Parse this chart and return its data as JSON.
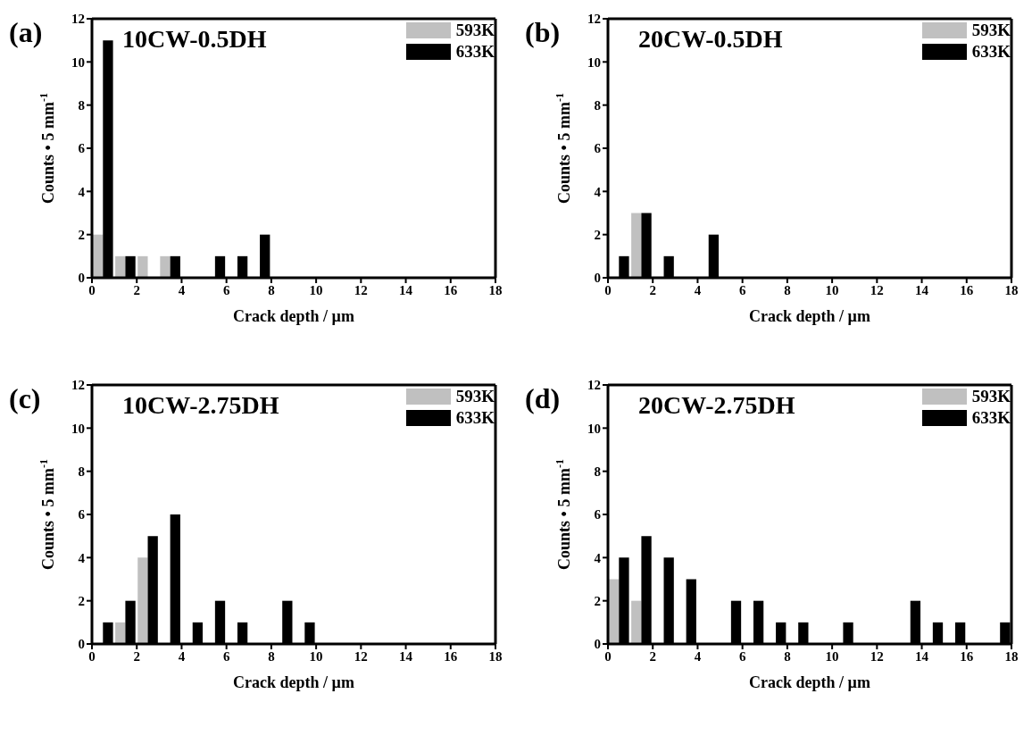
{
  "chart_data": [
    {
      "type": "histogram",
      "title": "10CW-0.5DH",
      "annotations": [
        "(a)"
      ],
      "xlabel": "Crack depth / µm",
      "ylabel": "Counts • 5 mm$^{-1}$",
      "bins": [
        0,
        1,
        2,
        3,
        4,
        5,
        6,
        7,
        8,
        9,
        10,
        11,
        12,
        13,
        14,
        15,
        16,
        17,
        18
      ],
      "xlim": [
        0,
        18
      ],
      "xticks": [
        0,
        2,
        4,
        6,
        8,
        10,
        12,
        14,
        16,
        18
      ],
      "ylim": [
        0,
        12
      ],
      "yticks": [
        0,
        2,
        4,
        6,
        8,
        10,
        12
      ],
      "legend": "top right",
      "series": [
        {
          "name": "593K",
          "color": "#c0c0c0",
          "values": [
            2,
            1,
            1,
            1,
            0,
            0,
            0,
            0,
            0,
            0,
            0,
            0,
            0,
            0,
            0,
            0,
            0,
            0
          ]
        },
        {
          "name": "633K",
          "color": "#000000",
          "values": [
            11,
            1,
            0,
            1,
            0,
            1,
            1,
            2,
            0,
            0,
            0,
            0,
            0,
            0,
            0,
            0,
            0,
            0
          ]
        }
      ]
    },
    {
      "type": "histogram",
      "title": "20CW-0.5DH",
      "annotations": [
        "(b)"
      ],
      "xlabel": "Crack depth / µm",
      "ylabel": "Counts • 5 mm$^{-1}$",
      "bins": [
        0,
        1,
        2,
        3,
        4,
        5,
        6,
        7,
        8,
        9,
        10,
        11,
        12,
        13,
        14,
        15,
        16,
        17,
        18
      ],
      "xlim": [
        0,
        18
      ],
      "xticks": [
        0,
        2,
        4,
        6,
        8,
        10,
        12,
        14,
        16,
        18
      ],
      "ylim": [
        0,
        12
      ],
      "yticks": [
        0,
        2,
        4,
        6,
        8,
        10,
        12
      ],
      "legend": "top right",
      "series": [
        {
          "name": "593K",
          "color": "#c0c0c0",
          "values": [
            0,
            3,
            0,
            0,
            0,
            0,
            0,
            0,
            0,
            0,
            0,
            0,
            0,
            0,
            0,
            0,
            0,
            0
          ]
        },
        {
          "name": "633K",
          "color": "#000000",
          "values": [
            1,
            3,
            1,
            0,
            2,
            0,
            0,
            0,
            0,
            0,
            0,
            0,
            0,
            0,
            0,
            0,
            0,
            0
          ]
        }
      ]
    },
    {
      "type": "histogram",
      "title": "10CW-2.75DH",
      "annotations": [
        "(c)"
      ],
      "xlabel": "Crack depth / µm",
      "ylabel": "Counts • 5 mm$^{-1}$",
      "bins": [
        0,
        1,
        2,
        3,
        4,
        5,
        6,
        7,
        8,
        9,
        10,
        11,
        12,
        13,
        14,
        15,
        16,
        17,
        18
      ],
      "xlim": [
        0,
        18
      ],
      "xticks": [
        0,
        2,
        4,
        6,
        8,
        10,
        12,
        14,
        16,
        18
      ],
      "ylim": [
        0,
        12
      ],
      "yticks": [
        0,
        2,
        4,
        6,
        8,
        10,
        12
      ],
      "legend": "top right",
      "series": [
        {
          "name": "593K",
          "color": "#c0c0c0",
          "values": [
            0,
            1,
            4,
            0,
            0,
            0,
            0,
            0,
            0,
            0,
            0,
            0,
            0,
            0,
            0,
            0,
            0,
            0
          ]
        },
        {
          "name": "633K",
          "color": "#000000",
          "values": [
            1,
            2,
            5,
            6,
            1,
            2,
            1,
            0,
            2,
            1,
            0,
            0,
            0,
            0,
            0,
            0,
            0,
            0
          ]
        }
      ]
    },
    {
      "type": "histogram",
      "title": "20CW-2.75DH",
      "annotations": [
        "(d)"
      ],
      "xlabel": "Crack depth / µm",
      "ylabel": "Counts • 5 mm$^{-1}$",
      "bins": [
        0,
        1,
        2,
        3,
        4,
        5,
        6,
        7,
        8,
        9,
        10,
        11,
        12,
        13,
        14,
        15,
        16,
        17,
        18
      ],
      "xlim": [
        0,
        18
      ],
      "xticks": [
        0,
        2,
        4,
        6,
        8,
        10,
        12,
        14,
        16,
        18
      ],
      "ylim": [
        0,
        12
      ],
      "yticks": [
        0,
        2,
        4,
        6,
        8,
        10,
        12
      ],
      "legend": "top right",
      "series": [
        {
          "name": "593K",
          "color": "#c0c0c0",
          "values": [
            3,
            2,
            0,
            0,
            0,
            0,
            0,
            0,
            0,
            0,
            0,
            0,
            0,
            0,
            0,
            0,
            0,
            0
          ]
        },
        {
          "name": "633K",
          "color": "#000000",
          "values": [
            4,
            5,
            4,
            3,
            0,
            2,
            2,
            1,
            1,
            0,
            1,
            0,
            0,
            2,
            1,
            1,
            0,
            1
          ]
        }
      ]
    }
  ]
}
